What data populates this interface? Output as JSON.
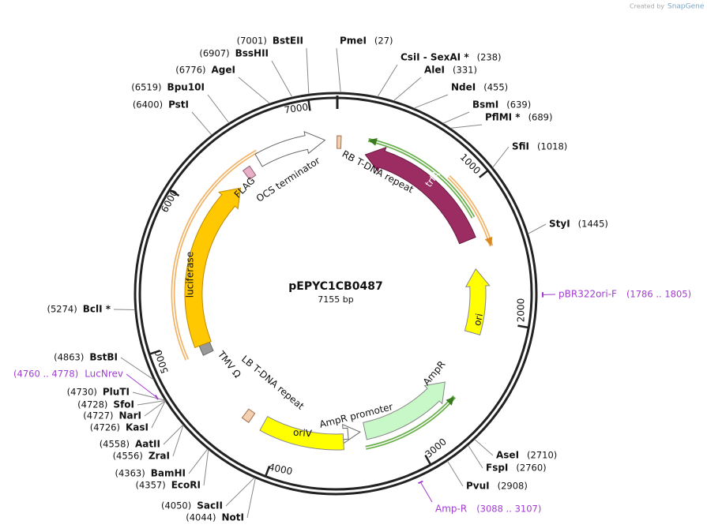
{
  "watermark": {
    "prefix": "Created by",
    "brand": "SnapGene"
  },
  "title": "pEPYC1CB0487",
  "size": "7155 bp",
  "ticks": [
    1000,
    2000,
    3000,
    4000,
    5000,
    6000,
    7000
  ],
  "sites": [
    {
      "name": "PmeI",
      "position": "(27)"
    },
    {
      "name": "CsiI  -  SexAI *",
      "position": "(238)"
    },
    {
      "name": "AleI",
      "position": "(331)"
    },
    {
      "name": "NdeI",
      "position": "(455)"
    },
    {
      "name": "BsmI",
      "position": "(639)"
    },
    {
      "name": "PflMI *",
      "position": "(689)"
    },
    {
      "name": "SfiI",
      "position": "(1018)"
    },
    {
      "name": "StyI",
      "position": "(1445)"
    },
    {
      "name": "AseI",
      "position": "(2710)"
    },
    {
      "name": "FspI",
      "position": "(2760)"
    },
    {
      "name": "PvuI",
      "position": "(2908)"
    },
    {
      "name": "NotI",
      "position": "(4044)"
    },
    {
      "name": "SacII",
      "position": "(4050)"
    },
    {
      "name": "EcoRI",
      "position": "(4357)"
    },
    {
      "name": "BamHI",
      "position": "(4363)"
    },
    {
      "name": "ZraI",
      "position": "(4556)"
    },
    {
      "name": "AatII",
      "position": "(4558)"
    },
    {
      "name": "KasI",
      "position": "(4726)"
    },
    {
      "name": "NarI",
      "position": "(4727)"
    },
    {
      "name": "SfoI",
      "position": "(4728)"
    },
    {
      "name": "PluTI",
      "position": "(4730)"
    },
    {
      "name": "BstBI",
      "position": "(4863)"
    },
    {
      "name": "BclI *",
      "position": "(5274)"
    },
    {
      "name": "PstI",
      "position": "(6400)"
    },
    {
      "name": "Bpu10I",
      "position": "(6519)"
    },
    {
      "name": "AgeI",
      "position": "(6776)"
    },
    {
      "name": "BssHII",
      "position": "(6907)"
    },
    {
      "name": "BstEII",
      "position": "(7001)"
    }
  ],
  "primers": [
    {
      "name": "pBR322ori-F",
      "range": "(1786 .. 1805)"
    },
    {
      "name": "Amp-R",
      "range": "(3088 .. 3107)"
    },
    {
      "name": "LucNrev",
      "range": "(4760 .. 4778)"
    }
  ],
  "features": [
    "RB T-DNA repeat",
    "trfA",
    "ori",
    "AmpR",
    "AmpR promoter",
    "oriV",
    "LB T-DNA repeat",
    "TMV Ω",
    "luciferase",
    "FLAG",
    "OCS terminator"
  ]
}
